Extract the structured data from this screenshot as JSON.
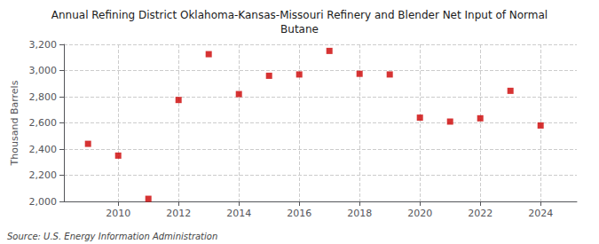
{
  "chart_data": {
    "type": "scatter",
    "title": "Annual Refining District Oklahoma-Kansas-Missouri Refinery and Blender Net Input of Normal\nButane",
    "ylabel": "Thousand Barrels",
    "annotations": [
      "Source: U.S. Energy Information Administration"
    ],
    "x": [
      2009,
      2010,
      2011,
      2012,
      2013,
      2014,
      2015,
      2016,
      2017,
      2018,
      2019,
      2020,
      2021,
      2022,
      2023,
      2024
    ],
    "values": [
      2440,
      2350,
      2020,
      2775,
      3125,
      2820,
      2960,
      2970,
      3150,
      2975,
      2970,
      2640,
      2610,
      2635,
      2845,
      2580
    ],
    "color": "#cc0000",
    "marker": "square",
    "xlim": [
      2008.2,
      2025.2
    ],
    "xticks": [
      2010,
      2012,
      2014,
      2016,
      2018,
      2020,
      2022,
      2024
    ],
    "ylim": [
      2000,
      3200
    ],
    "yticks": [
      {
        "value": 2000,
        "label": "2,000"
      },
      {
        "value": 2200,
        "label": "2,200"
      },
      {
        "value": 2400,
        "label": "2,400"
      },
      {
        "value": 2600,
        "label": "2,600"
      },
      {
        "value": 2800,
        "label": "2,800"
      },
      {
        "value": 3000,
        "label": "3,000"
      },
      {
        "value": 3200,
        "label": "3,200"
      }
    ],
    "grid": true
  }
}
